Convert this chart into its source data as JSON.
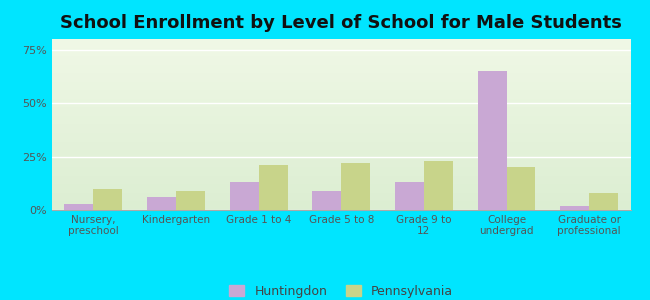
{
  "title": "School Enrollment by Level of School for Male Students",
  "categories": [
    "Nursery,\npreschool",
    "Kindergarten",
    "Grade 1 to 4",
    "Grade 5 to 8",
    "Grade 9 to\n12",
    "College\nundergrad",
    "Graduate or\nprofessional"
  ],
  "huntingdon": [
    3.0,
    6.0,
    13.0,
    9.0,
    13.0,
    65.0,
    2.0
  ],
  "pennsylvania": [
    10.0,
    9.0,
    21.0,
    22.0,
    23.0,
    20.0,
    8.0
  ],
  "huntingdon_color": "#c9a8d4",
  "pennsylvania_color": "#c8d48a",
  "background_outer": "#00e5ff",
  "ylim": [
    0,
    80
  ],
  "yticks": [
    0,
    25,
    50,
    75
  ],
  "ytick_labels": [
    "0%",
    "25%",
    "50%",
    "75%"
  ],
  "title_fontsize": 13,
  "legend_labels": [
    "Huntingdon",
    "Pennsylvania"
  ],
  "bar_width": 0.35,
  "grid_color": "#ffffff"
}
